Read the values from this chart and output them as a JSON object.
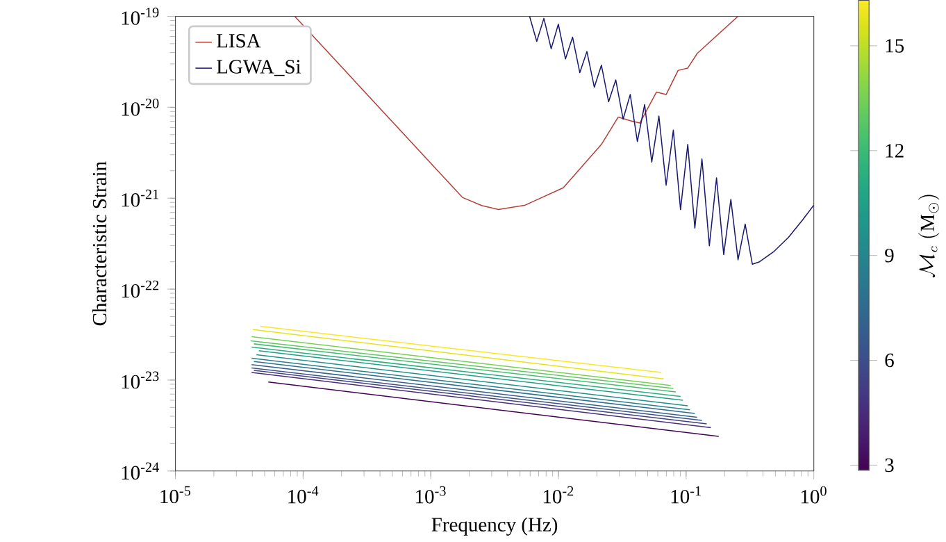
{
  "chart_data": {
    "type": "line",
    "xlabel": "Frequency (Hz)",
    "ylabel": "Characteristic Strain",
    "clabel": "\\mathcal{M}_c\\ (\\mathrm{M}_\\odot)",
    "log": "xy",
    "legend": "top left",
    "xlim": [
      1e-05,
      1
    ],
    "xticks": [
      {
        "value": 1e-05,
        "label": "10$^{-5}$"
      },
      {
        "value": 0.0001,
        "label": "10$^{-4}$"
      },
      {
        "value": 0.001,
        "label": "10$^{-3}$"
      },
      {
        "value": 0.01,
        "label": "10$^{-2}$"
      },
      {
        "value": 0.1,
        "label": "10$^{-1}$"
      },
      {
        "value": 1,
        "label": "10$^{0}$"
      }
    ],
    "ylim": [
      1e-24,
      1e-19
    ],
    "yticks": [
      {
        "value": 1e-24,
        "label": "10$^{-24}$"
      },
      {
        "value": 1e-23,
        "label": "10$^{-23}$"
      },
      {
        "value": 1e-22,
        "label": "10$^{-22}$"
      },
      {
        "value": 1e-21,
        "label": "10$^{-21}$"
      },
      {
        "value": 1e-20,
        "label": "10$^{-20}$"
      },
      {
        "value": 1e-19,
        "label": "10$^{-19}$"
      }
    ],
    "clim": [
      2.85,
      16.3
    ],
    "cticks": [
      3,
      6,
      9,
      12,
      15
    ],
    "series": [
      {
        "name": "LISA",
        "color": "#b5403a",
        "x": [
          8.6e-05,
          0.00177,
          0.0025,
          0.00339,
          0.0055,
          0.0109,
          0.0217,
          0.0294,
          0.0365,
          0.0434,
          0.0586,
          0.0697,
          0.0865,
          0.103,
          0.122,
          0.255
        ],
        "values": [
          1e-19,
          1.02e-21,
          8.3e-22,
          7.5e-22,
          8.4e-22,
          1.3e-21,
          3.9e-21,
          7.8e-21,
          7.1e-21,
          6.7e-21,
          1.47e-20,
          1.38e-20,
          2.54e-20,
          2.7e-20,
          3.9e-20,
          1e-19
        ]
      },
      {
        "name": "LGWA_Si",
        "color": "#191970",
        "x": [
          0.00594,
          0.00676,
          0.00769,
          0.00877,
          0.00998,
          0.01135,
          0.0129,
          0.0147,
          0.0167,
          0.0191,
          0.0217,
          0.0247,
          0.0281,
          0.0321,
          0.0365,
          0.0415,
          0.0473,
          0.0538,
          0.0612,
          0.0697,
          0.0794,
          0.0904,
          0.103,
          0.117,
          0.133,
          0.152,
          0.173,
          0.197,
          0.224,
          0.255,
          0.29,
          0.33,
          0.376,
          0.488,
          0.632,
          0.819,
          1
        ],
        "values": [
          1e-19,
          5.3e-20,
          9.5e-20,
          4.4e-20,
          8.2e-20,
          3.4e-20,
          5.9e-20,
          2.4e-20,
          4.1e-20,
          1.66e-20,
          2.9e-20,
          1.15e-20,
          2e-20,
          7.4e-21,
          1.38e-20,
          4.2e-21,
          1.07e-20,
          2.5e-21,
          8e-21,
          1.39e-21,
          5.6e-21,
          7.5e-22,
          3.9e-21,
          4.7e-22,
          2.7e-21,
          3e-22,
          1.67e-21,
          2.4e-22,
          9.7e-22,
          2.1e-22,
          5.2e-22,
          1.88e-22,
          2e-22,
          2.6e-22,
          3.7e-22,
          5.8e-22,
          8.4e-22
        ]
      },
      {
        "color": "#fde725",
        "x": [
          4.61e-05,
          0.064
        ],
        "values": [
          3.9e-23,
          1.21e-23
        ]
      },
      {
        "color": "#e5e419",
        "x": [
          4.05e-05,
          0.0667
        ],
        "values": [
          3.6e-23,
          1.03e-23
        ]
      },
      {
        "color": "#7ad151",
        "x": [
          3.95e-05,
          0.076
        ],
        "values": [
          3e-23,
          8.7e-24
        ]
      },
      {
        "color": "#5ec962",
        "x": [
          3.88e-05,
          0.0794
        ],
        "values": [
          2.7e-23,
          8.1e-24
        ]
      },
      {
        "color": "#44bf70",
        "x": [
          4.12e-05,
          0.0829
        ],
        "values": [
          2.5e-23,
          7.4e-24
        ]
      },
      {
        "color": "#2ab07f",
        "x": [
          3.95e-05,
          0.0904
        ],
        "values": [
          2.3e-23,
          6.6e-24
        ]
      },
      {
        "color": "#1fa088",
        "x": [
          4.5e-05,
          0.0944
        ],
        "values": [
          2.1e-23,
          6e-24
        ]
      },
      {
        "color": "#21918c",
        "x": [
          4.31e-05,
          0.103
        ],
        "values": [
          1.9e-23,
          5.2e-24
        ]
      },
      {
        "color": "#26828e",
        "x": [
          3.95e-05,
          0.107
        ],
        "values": [
          1.74e-23,
          4.7e-24
        ]
      },
      {
        "color": "#2c728e",
        "x": [
          4.12e-05,
          0.117
        ],
        "values": [
          1.6e-23,
          4.3e-24
        ]
      },
      {
        "color": "#33638d",
        "x": [
          3.95e-05,
          0.122
        ],
        "values": [
          1.48e-23,
          3.9e-24
        ]
      },
      {
        "color": "#3b528b",
        "x": [
          3.95e-05,
          0.133
        ],
        "values": [
          1.36e-23,
          3.6e-24
        ]
      },
      {
        "color": "#424086",
        "x": [
          4.12e-05,
          0.145
        ],
        "values": [
          1.28e-23,
          3.3e-24
        ]
      },
      {
        "color": "#472d7b",
        "x": [
          3.95e-05,
          0.156
        ],
        "values": [
          1.21e-23,
          3e-24
        ]
      },
      {
        "color": "#440154",
        "x": [
          5.34e-05,
          0.18
        ],
        "values": [
          9.5e-24,
          2.4e-24
        ]
      }
    ]
  }
}
